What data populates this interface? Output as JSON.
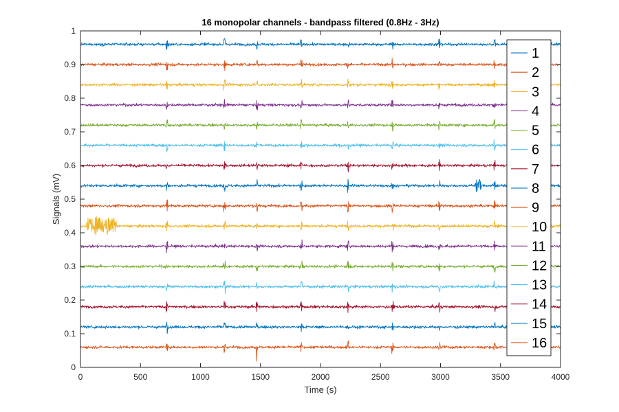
{
  "chart_data": {
    "type": "line",
    "title": "16 monopolar channels - bandpass filtered (0.8Hz - 3Hz)",
    "xlabel": "Time (s)",
    "ylabel": "Signals (mV)",
    "xlim": [
      0,
      4000
    ],
    "ylim": [
      0,
      1
    ],
    "xticks": [
      "0",
      "500",
      "1000",
      "1500",
      "2000",
      "2500",
      "3000",
      "3500",
      "4000"
    ],
    "yticks": [
      "0",
      "0.1",
      "0.2",
      "0.3",
      "0.4",
      "0.5",
      "0.6",
      "0.7",
      "0.8",
      "0.9",
      "1"
    ],
    "legend_position": "right",
    "grid": false,
    "common_spike_times": [
      720,
      1200,
      1470,
      1840,
      2230,
      2600,
      2990,
      3450
    ],
    "series": [
      {
        "name": "1",
        "color": "#0072BD",
        "offset": 0.96
      },
      {
        "name": "2",
        "color": "#D95319",
        "offset": 0.9
      },
      {
        "name": "3",
        "color": "#EDB120",
        "offset": 0.84
      },
      {
        "name": "4",
        "color": "#7E2F8E",
        "offset": 0.78
      },
      {
        "name": "5",
        "color": "#77AC30",
        "offset": 0.72
      },
      {
        "name": "6",
        "color": "#4DBEEE",
        "offset": 0.66
      },
      {
        "name": "7",
        "color": "#A2142F",
        "offset": 0.6
      },
      {
        "name": "8",
        "color": "#0072BD",
        "offset": 0.54
      },
      {
        "name": "9",
        "color": "#D95319",
        "offset": 0.48
      },
      {
        "name": "10",
        "color": "#EDB120",
        "offset": 0.42
      },
      {
        "name": "11",
        "color": "#7E2F8E",
        "offset": 0.36
      },
      {
        "name": "12",
        "color": "#77AC30",
        "offset": 0.3
      },
      {
        "name": "13",
        "color": "#4DBEEE",
        "offset": 0.24
      },
      {
        "name": "14",
        "color": "#A2142F",
        "offset": 0.18
      },
      {
        "name": "15",
        "color": "#0072BD",
        "offset": 0.12
      },
      {
        "name": "16",
        "color": "#D95319",
        "offset": 0.06
      }
    ]
  }
}
